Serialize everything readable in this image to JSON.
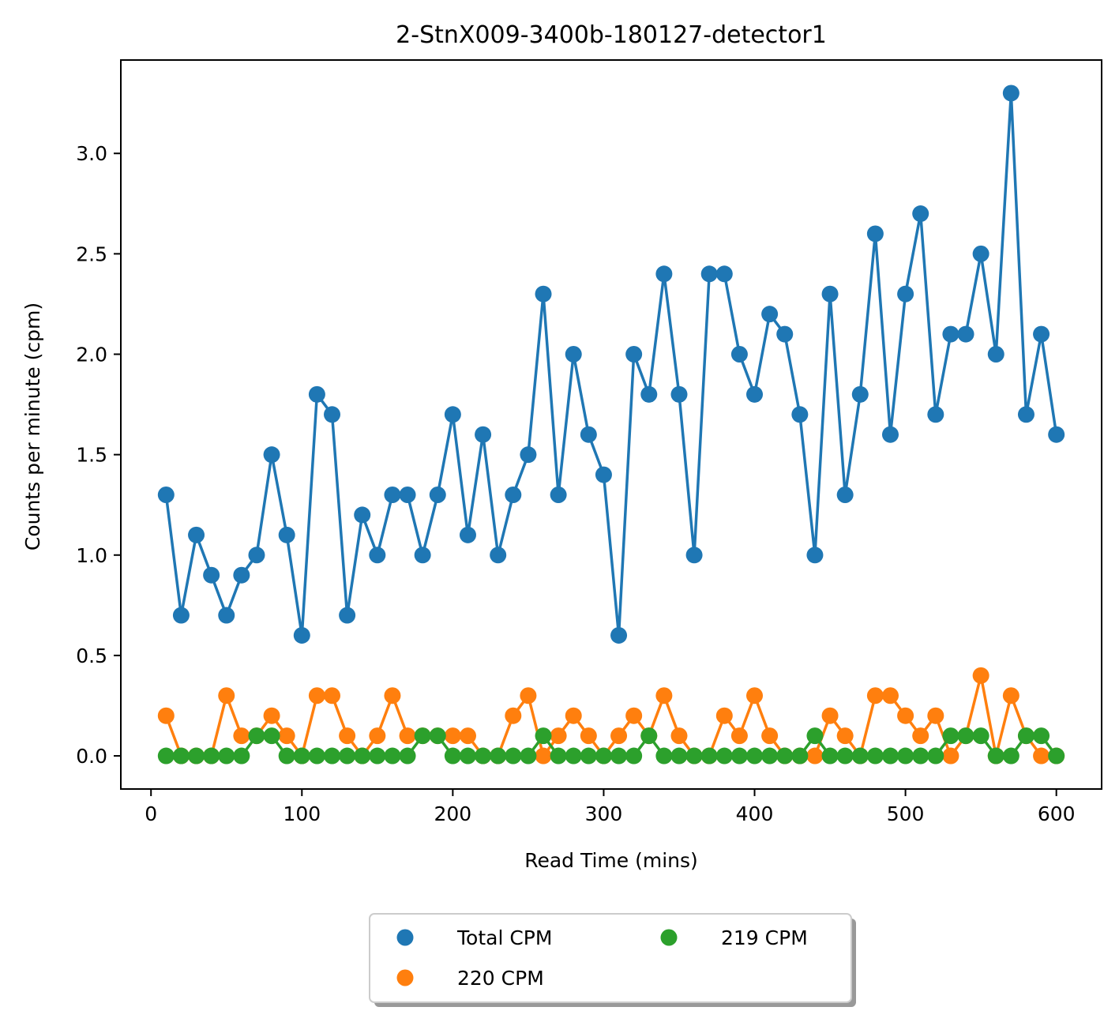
{
  "chart_data": {
    "type": "line",
    "title": "2-StnX009-3400b-180127-detector1",
    "xlabel": "Read Time (mins)",
    "ylabel": "Counts per minute (cpm)",
    "xlim": [
      -20,
      630
    ],
    "ylim": [
      -0.165,
      3.465
    ],
    "x_ticks": [
      0,
      100,
      200,
      300,
      400,
      500,
      600
    ],
    "x_tick_labels": [
      "0",
      "100",
      "200",
      "300",
      "400",
      "500",
      "600"
    ],
    "y_ticks": [
      0.0,
      0.5,
      1.0,
      1.5,
      2.0,
      2.5,
      3.0
    ],
    "y_tick_labels": [
      "0.0",
      "0.5",
      "1.0",
      "1.5",
      "2.0",
      "2.5",
      "3.0"
    ],
    "grid": false,
    "legend_position": "below plot, centered",
    "x": [
      10,
      20,
      30,
      40,
      50,
      60,
      70,
      80,
      90,
      100,
      110,
      120,
      130,
      140,
      150,
      160,
      170,
      180,
      190,
      200,
      210,
      220,
      230,
      240,
      250,
      260,
      270,
      280,
      290,
      300,
      310,
      320,
      330,
      340,
      350,
      360,
      370,
      380,
      390,
      400,
      410,
      420,
      430,
      440,
      450,
      460,
      470,
      480,
      490,
      500,
      510,
      520,
      530,
      540,
      550,
      560,
      570,
      580,
      590,
      600
    ],
    "series": [
      {
        "name": "Total CPM",
        "color": "#1f77b4",
        "values": [
          1.3,
          0.7,
          1.1,
          0.9,
          0.7,
          0.9,
          1.0,
          1.5,
          1.1,
          0.6,
          1.8,
          1.7,
          0.7,
          1.2,
          1.0,
          1.3,
          1.3,
          1.0,
          1.3,
          1.7,
          1.1,
          1.6,
          1.0,
          1.3,
          1.5,
          2.3,
          1.3,
          2.0,
          1.6,
          1.4,
          0.6,
          2.0,
          1.8,
          2.4,
          1.8,
          1.0,
          2.4,
          2.4,
          2.0,
          1.8,
          2.2,
          2.1,
          1.7,
          1.0,
          2.3,
          1.3,
          1.8,
          2.6,
          1.6,
          2.3,
          2.7,
          1.7,
          2.1,
          2.1,
          2.5,
          2.0,
          3.3,
          1.7,
          2.1,
          1.6
        ]
      },
      {
        "name": "220 CPM",
        "color": "#ff7f0e",
        "values": [
          0.2,
          0.0,
          0.0,
          0.0,
          0.3,
          0.1,
          0.1,
          0.2,
          0.1,
          0.0,
          0.3,
          0.3,
          0.1,
          0.0,
          0.1,
          0.3,
          0.1,
          0.1,
          0.1,
          0.1,
          0.1,
          0.0,
          0.0,
          0.2,
          0.3,
          0.0,
          0.1,
          0.2,
          0.1,
          0.0,
          0.1,
          0.2,
          0.1,
          0.3,
          0.1,
          0.0,
          0.0,
          0.2,
          0.1,
          0.3,
          0.1,
          0.0,
          0.0,
          0.0,
          0.2,
          0.1,
          0.0,
          0.3,
          0.3,
          0.2,
          0.1,
          0.2,
          0.0,
          0.1,
          0.4,
          0.0,
          0.3,
          0.1,
          0.0,
          0.0
        ]
      },
      {
        "name": "219 CPM",
        "color": "#2ca02c",
        "values": [
          0.0,
          0.0,
          0.0,
          0.0,
          0.0,
          0.0,
          0.1,
          0.1,
          0.0,
          0.0,
          0.0,
          0.0,
          0.0,
          0.0,
          0.0,
          0.0,
          0.0,
          0.1,
          0.1,
          0.0,
          0.0,
          0.0,
          0.0,
          0.0,
          0.0,
          0.1,
          0.0,
          0.0,
          0.0,
          0.0,
          0.0,
          0.0,
          0.1,
          0.0,
          0.0,
          0.0,
          0.0,
          0.0,
          0.0,
          0.0,
          0.0,
          0.0,
          0.0,
          0.1,
          0.0,
          0.0,
          0.0,
          0.0,
          0.0,
          0.0,
          0.0,
          0.0,
          0.1,
          0.1,
          0.1,
          0.0,
          0.0,
          0.1,
          0.1,
          0.0
        ]
      }
    ]
  }
}
